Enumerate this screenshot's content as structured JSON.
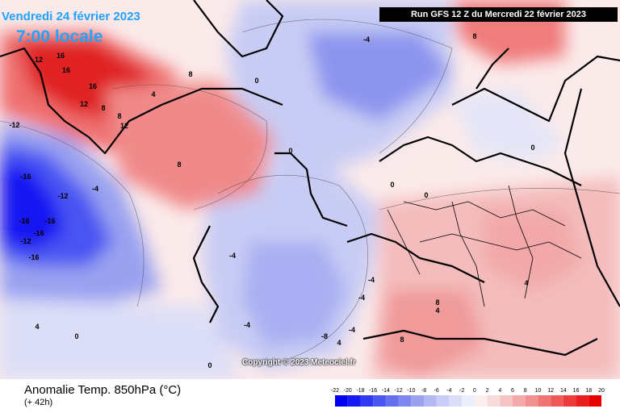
{
  "header": {
    "date": "Vendredi 24 février 2023",
    "time": "7:00 locale",
    "run": "Run GFS 12 Z du Mercredi 22 février 2023"
  },
  "copyright": "Copyright © 2023 Meteociel.fr",
  "footer": {
    "title": "Anomalie Temp. 850hPa (°C)",
    "subtitle": "(+ 42h)"
  },
  "legend": {
    "ticks": [
      "-22",
      "-20",
      "-18",
      "-16",
      "-14",
      "-12",
      "-10",
      "-8",
      "-6",
      "-4",
      "-2",
      "0",
      "2",
      "4",
      "6",
      "8",
      "10",
      "12",
      "14",
      "16",
      "18",
      "20"
    ],
    "colors": [
      "#0000ee",
      "#1818f2",
      "#2f3af2",
      "#4a55f2",
      "#6570f0",
      "#7e87ee",
      "#9aa2f0",
      "#b3b8f2",
      "#cacdf5",
      "#dcdef8",
      "#edeefb",
      "#fbeeee",
      "#f8dcdc",
      "#f5c5c5",
      "#f2aaaa",
      "#f09090",
      "#ef7575",
      "#ee5858",
      "#ed3a3a",
      "#ea1e1e",
      "#e60000"
    ]
  },
  "map_labels": [
    {
      "text": "12"
    },
    {
      "text": "16"
    },
    {
      "text": "16"
    },
    {
      "text": "16"
    },
    {
      "text": "12"
    },
    {
      "text": "8"
    },
    {
      "text": "4"
    },
    {
      "text": "12"
    },
    {
      "text": "8"
    },
    {
      "text": "-12"
    },
    {
      "text": "-16"
    },
    {
      "text": "-12"
    },
    {
      "text": "-16"
    },
    {
      "text": "-16"
    },
    {
      "text": "-12"
    },
    {
      "text": "-16"
    },
    {
      "text": "-16"
    },
    {
      "text": "-4"
    },
    {
      "text": "0"
    },
    {
      "text": "8"
    },
    {
      "text": "-4"
    },
    {
      "text": "0"
    },
    {
      "text": "8"
    },
    {
      "text": "8"
    },
    {
      "text": "-4"
    },
    {
      "text": "0"
    },
    {
      "text": "0"
    },
    {
      "text": "-4"
    },
    {
      "text": "-4"
    },
    {
      "text": "-4"
    },
    {
      "text": "-8"
    },
    {
      "text": "-4"
    },
    {
      "text": "4"
    },
    {
      "text": "4"
    },
    {
      "text": "8"
    },
    {
      "text": "8"
    },
    {
      "text": "4"
    },
    {
      "text": "0"
    },
    {
      "text": "0"
    },
    {
      "text": "4"
    },
    {
      "text": "0"
    }
  ]
}
